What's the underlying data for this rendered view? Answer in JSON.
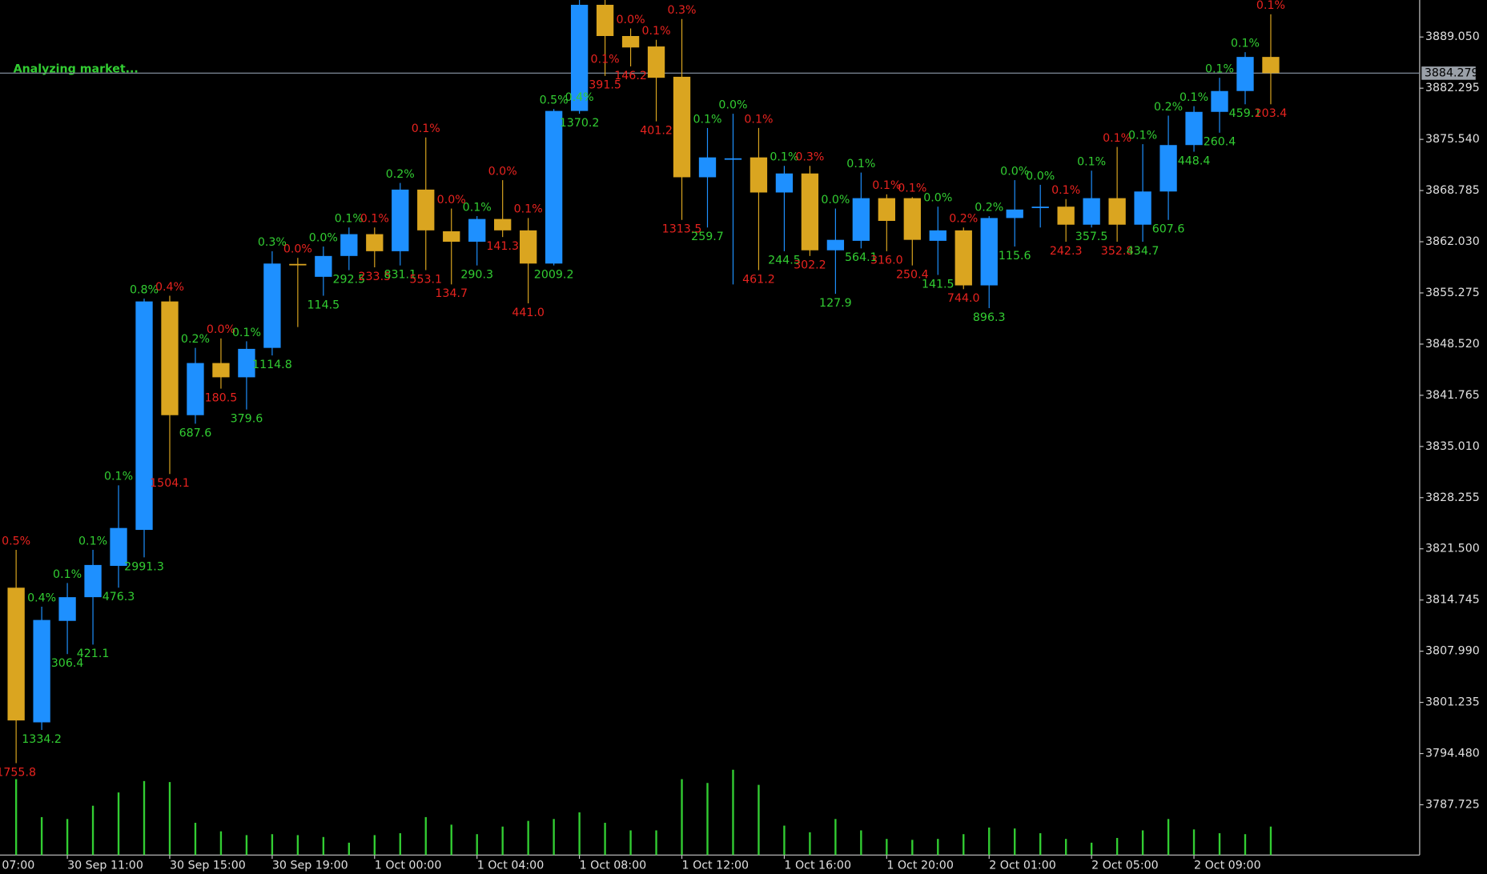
{
  "chart_data": {
    "type": "candlestick",
    "annotation": "Analyzing market...",
    "first_time_label": "07:00",
    "x": [
      null,
      null,
      "30 Sep 11:00",
      null,
      null,
      null,
      "30 Sep 15:00",
      null,
      null,
      null,
      "30 Sep 19:00",
      null,
      null,
      null,
      "1 Oct 00:00",
      null,
      null,
      null,
      "1 Oct 04:00",
      null,
      null,
      null,
      "1 Oct 08:00",
      null,
      null,
      null,
      "1 Oct 12:00",
      null,
      null,
      null,
      "1 Oct 16:00",
      null,
      null,
      null,
      "1 Oct 20:00",
      null,
      null,
      null,
      "2 Oct 01:00",
      null,
      null,
      null,
      "2 Oct 05:00",
      null,
      null,
      null,
      "2 Oct 09:00",
      null,
      null,
      null
    ],
    "open": [
      3816.37,
      3798.6,
      3811.99,
      3815.12,
      3819.25,
      3824.0,
      3854.15,
      3839.14,
      3846.02,
      3844.14,
      3848.02,
      3859.1,
      3857.4,
      3860.15,
      3863.03,
      3860.78,
      3868.91,
      3863.41,
      3862.03,
      3865.03,
      3863.53,
      3859.15,
      3879.29,
      3893.3,
      3889.18,
      3887.8,
      3883.8,
      3870.54,
      3873.04,
      3873.16,
      3868.53,
      3871.04,
      3860.9,
      3862.15,
      3867.78,
      3867.78,
      3862.15,
      3863.53,
      3856.27,
      3865.16,
      3866.66,
      3866.66,
      3864.28,
      3867.78,
      3864.28,
      3868.66,
      3874.79,
      3879.17,
      3881.92,
      3886.42
    ],
    "high": [
      3821.37,
      3813.87,
      3816.99,
      3821.37,
      3829.88,
      3854.52,
      3854.9,
      3848.02,
      3849.27,
      3848.89,
      3860.78,
      3859.9,
      3861.4,
      3863.91,
      3863.91,
      3869.79,
      3875.79,
      3866.41,
      3865.41,
      3870.16,
      3865.16,
      3879.54,
      3894.5,
      3894.2,
      3890.18,
      3888.68,
      3891.43,
      3877.04,
      3878.92,
      3877.04,
      3872.04,
      3872.04,
      3866.41,
      3871.16,
      3868.28,
      3867.91,
      3866.66,
      3863.91,
      3865.41,
      3870.16,
      3869.54,
      3867.66,
      3871.41,
      3874.54,
      3874.91,
      3878.67,
      3879.92,
      3883.67,
      3887.05,
      3892.05
    ],
    "low": [
      3793.22,
      3797.6,
      3807.61,
      3808.86,
      3816.37,
      3820.37,
      3831.38,
      3838.01,
      3842.64,
      3839.89,
      3847.02,
      3850.77,
      3854.9,
      3858.28,
      3858.65,
      3858.9,
      3858.28,
      3856.4,
      3858.9,
      3862.65,
      3853.9,
      3858.9,
      3878.92,
      3883.92,
      3885.17,
      3877.92,
      3864.91,
      3863.91,
      3856.4,
      3858.28,
      3860.78,
      3860.15,
      3855.15,
      3861.15,
      3860.78,
      3858.9,
      3857.65,
      3855.77,
      3853.27,
      3861.4,
      3863.91,
      3862.03,
      3863.91,
      3862.03,
      3862.03,
      3864.91,
      3873.91,
      3876.42,
      3880.17,
      3880.17
    ],
    "close": [
      3798.85,
      3812.11,
      3815.12,
      3819.37,
      3824.25,
      3854.15,
      3839.14,
      3846.02,
      3844.14,
      3847.89,
      3859.15,
      3859.03,
      3860.15,
      3863.03,
      3860.78,
      3868.91,
      3863.53,
      3862.03,
      3865.03,
      3863.53,
      3859.15,
      3879.29,
      3893.3,
      3889.18,
      3887.67,
      3883.67,
      3870.54,
      3873.16,
      3873.04,
      3868.53,
      3871.04,
      3860.9,
      3862.28,
      3867.78,
      3864.78,
      3862.28,
      3863.53,
      3856.27,
      3865.16,
      3866.28,
      3866.66,
      3864.28,
      3867.78,
      3864.28,
      3868.66,
      3874.79,
      3879.17,
      3881.92,
      3886.42,
      3884.28
    ],
    "change_labels": [
      "0.5%",
      "0.4%",
      "0.1%",
      "0.1%",
      "0.1%",
      "0.8%",
      "0.4%",
      "0.2%",
      "0.0%",
      "0.1%",
      "0.3%",
      "0.0%",
      "0.0%",
      "0.1%",
      "0.1%",
      "0.2%",
      "0.1%",
      "0.0%",
      "0.1%",
      "0.0%",
      "0.1%",
      "0.5%",
      "0.4%",
      "0.1%",
      "0.0%",
      "0.1%",
      "0.3%",
      "0.1%",
      "0.0%",
      "0.1%",
      "0.1%",
      "0.3%",
      "0.0%",
      "0.1%",
      "0.1%",
      "0.1%",
      "0.0%",
      "0.2%",
      "0.2%",
      "0.0%",
      "0.0%",
      "0.1%",
      "0.1%",
      "0.1%",
      "0.1%",
      "0.2%",
      "0.1%",
      "0.1%",
      "0.1%",
      "0.1%"
    ],
    "bottom_labels": [
      "1755.8",
      "1334.2",
      "306.4",
      "421.1",
      "476.3",
      "2991.3",
      "1504.1",
      "687.6",
      "180.5",
      "379.6",
      "1114.8",
      null,
      "114.5",
      "292.5",
      "233.5",
      "831.1",
      "553.1",
      "134.7",
      "290.3",
      "141.3",
      "441.0",
      "2009.2",
      "1370.2",
      "391.5",
      "146.2",
      "401.2",
      "1313.5",
      "259.7",
      null,
      "461.2",
      "244.5",
      "302.2",
      "127.9",
      "564.1",
      "316.0",
      "250.4",
      "141.5",
      "744.0",
      "896.3",
      "115.6",
      null,
      "242.3",
      "357.5",
      "352.8",
      "434.7",
      "607.6",
      "448.4",
      "260.4",
      "459.1",
      "203.4"
    ],
    "volumes": [
      80,
      40,
      38,
      52,
      66,
      78,
      77,
      34,
      25,
      21,
      22,
      21,
      19,
      13,
      21,
      23,
      40,
      32,
      22,
      30,
      36,
      38,
      45,
      34,
      26,
      26,
      80,
      76,
      90,
      74,
      31,
      24,
      38,
      26,
      17,
      16,
      17,
      22,
      29,
      28,
      23,
      17,
      13,
      18,
      26,
      38,
      27,
      23,
      22,
      30
    ],
    "volume_ylim": [
      0,
      100
    ],
    "current_price": 3884.279,
    "ylim": [
      3781.09,
      3893.93
    ],
    "yticks": [
      {
        "value": 3889.05,
        "label": "3889.050"
      },
      {
        "value": 3882.295,
        "label": "3882.295"
      },
      {
        "value": 3875.54,
        "label": "3875.540"
      },
      {
        "value": 3868.785,
        "label": "3868.785"
      },
      {
        "value": 3862.03,
        "label": "3862.030"
      },
      {
        "value": 3855.275,
        "label": "3855.275"
      },
      {
        "value": 3848.52,
        "label": "3848.520"
      },
      {
        "value": 3841.765,
        "label": "3841.765"
      },
      {
        "value": 3835.01,
        "label": "3835.010"
      },
      {
        "value": 3828.255,
        "label": "3828.255"
      },
      {
        "value": 3821.5,
        "label": "3821.500"
      },
      {
        "value": 3814.745,
        "label": "3814.745"
      },
      {
        "value": 3807.99,
        "label": "3807.990"
      },
      {
        "value": 3801.235,
        "label": "3801.235"
      },
      {
        "value": 3794.48,
        "label": "3794.480"
      },
      {
        "value": 3787.725,
        "label": "3787.725"
      }
    ],
    "bull_color": "#1e90ff",
    "bear_color": "#daa520",
    "up_label_color": "#32cd32",
    "down_label_color": "#e8231f",
    "volume_color": "#32cd32",
    "annotation_color": "#32cd32"
  }
}
